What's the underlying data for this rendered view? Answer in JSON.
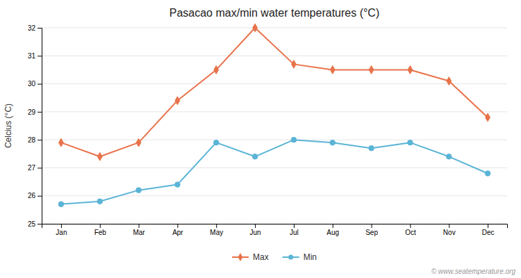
{
  "chart_data": {
    "type": "line",
    "title": "Pasacao max/min water temperatures (°C)",
    "ylabel": "Celcius (°C)",
    "categories": [
      "Jan",
      "Feb",
      "Mar",
      "Apr",
      "May",
      "Jun",
      "Jul",
      "Aug",
      "Sep",
      "Oct",
      "Nov",
      "Dec"
    ],
    "series": [
      {
        "name": "Max",
        "color": "#e8724a",
        "marker": "diamond",
        "values": [
          27.9,
          27.4,
          27.9,
          29.4,
          30.5,
          32.0,
          30.7,
          30.5,
          30.5,
          30.5,
          30.1,
          28.8
        ]
      },
      {
        "name": "Min",
        "color": "#5ab4d6",
        "marker": "circle",
        "values": [
          25.7,
          25.8,
          26.2,
          26.4,
          27.9,
          27.4,
          28.0,
          27.9,
          27.7,
          27.9,
          27.4,
          26.8
        ]
      }
    ],
    "ylim": [
      25,
      32
    ],
    "yticks": [
      25,
      26,
      27,
      28,
      29,
      30,
      31,
      32
    ],
    "grid": true,
    "legend": "bottom",
    "annotations": [
      "© www.seatemperature.org"
    ]
  }
}
